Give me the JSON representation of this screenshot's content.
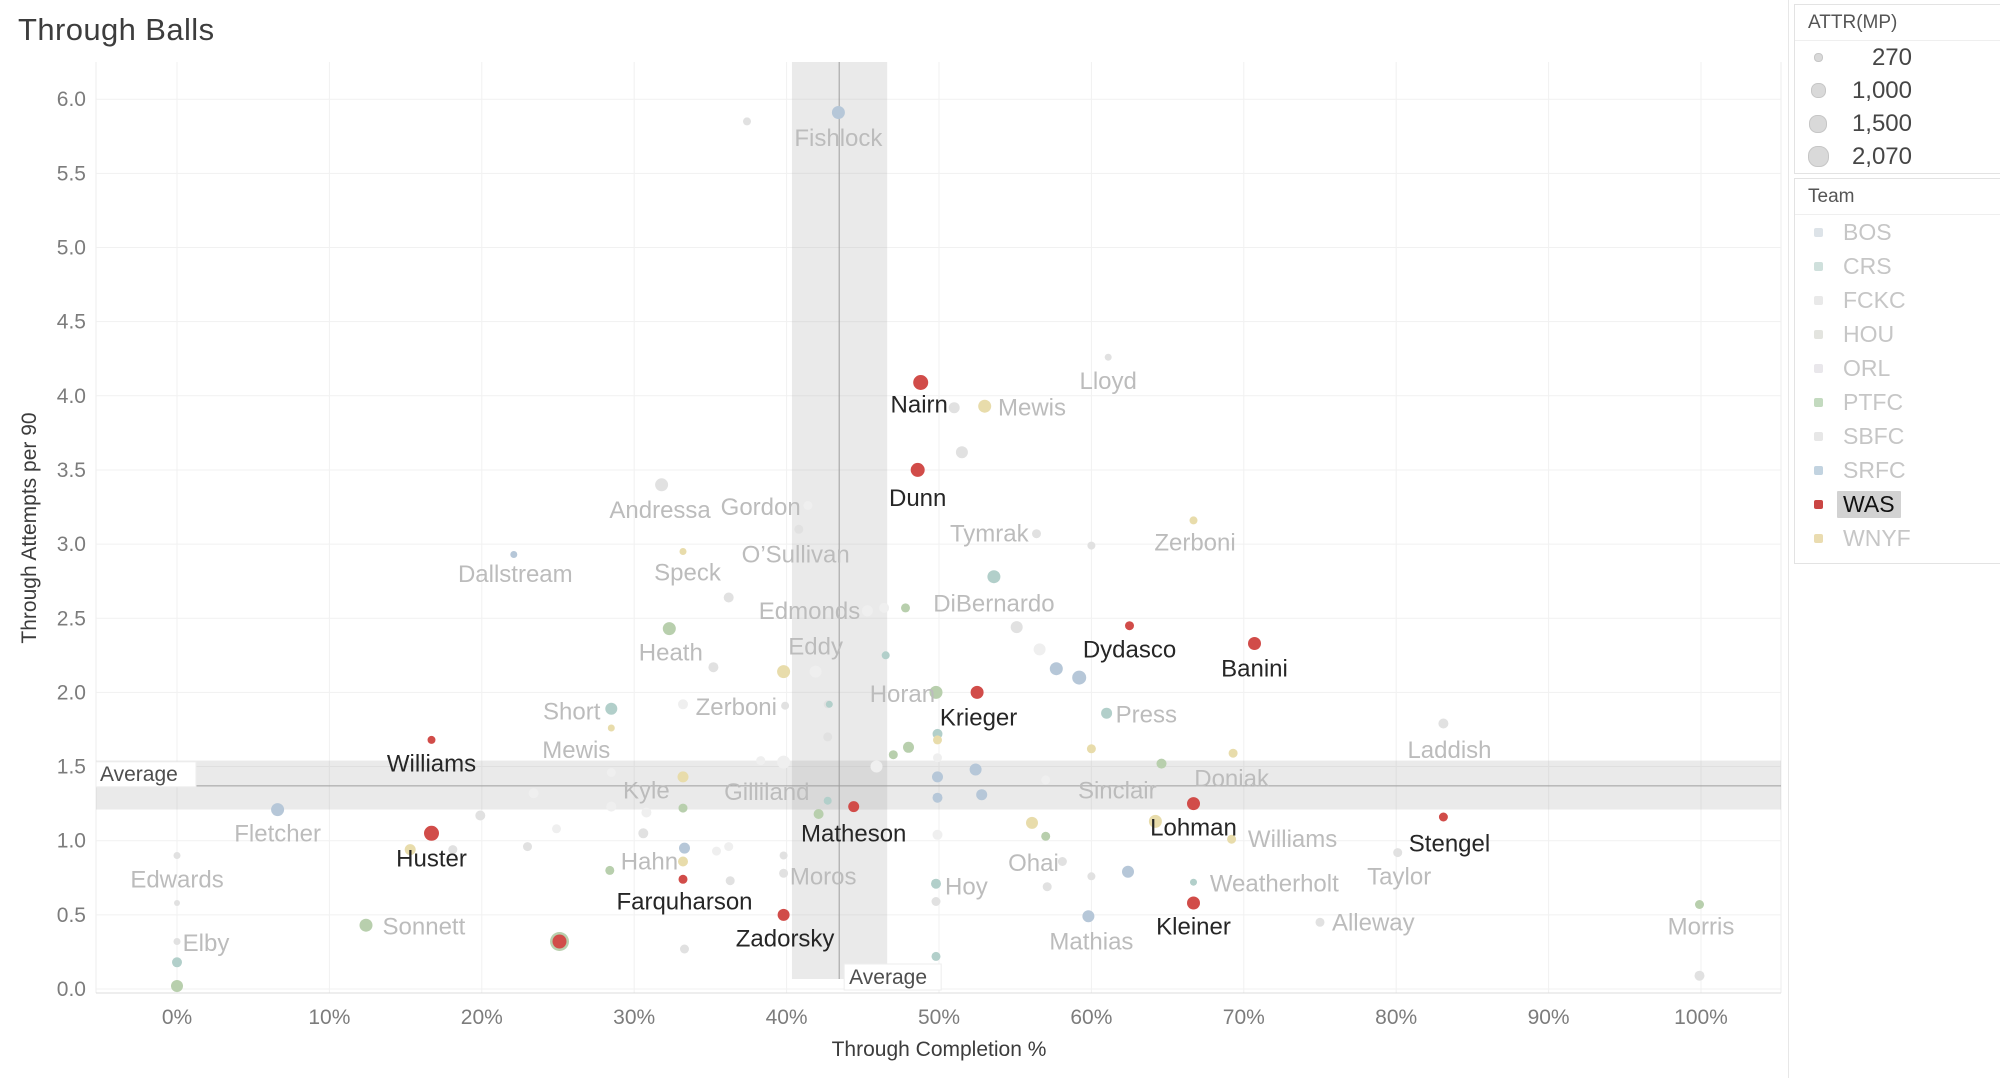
{
  "title": "Through Balls",
  "chart_data": {
    "type": "scatter",
    "title": "Through Balls",
    "xlabel": "Through Completion %",
    "ylabel": "Through Attempts per 90",
    "grid": true,
    "x_range_pct": [
      -5.3,
      105.3
    ],
    "y_range": [
      -0.03,
      6.25
    ],
    "x_ticks": [
      {
        "v": 0,
        "label": "0%"
      },
      {
        "v": 10,
        "label": "10%"
      },
      {
        "v": 20,
        "label": "20%"
      },
      {
        "v": 30,
        "label": "30%"
      },
      {
        "v": 40,
        "label": "40%"
      },
      {
        "v": 50,
        "label": "50%"
      },
      {
        "v": 60,
        "label": "60%"
      },
      {
        "v": 70,
        "label": "70%"
      },
      {
        "v": 80,
        "label": "80%"
      },
      {
        "v": 90,
        "label": "90%"
      },
      {
        "v": 100,
        "label": "100%"
      }
    ],
    "y_ticks": [
      {
        "v": 0,
        "label": "0.0"
      },
      {
        "v": 0.5,
        "label": "0.5"
      },
      {
        "v": 1,
        "label": "1.0"
      },
      {
        "v": 1.5,
        "label": "1.5"
      },
      {
        "v": 2,
        "label": "2.0"
      },
      {
        "v": 2.5,
        "label": "2.5"
      },
      {
        "v": 3,
        "label": "3.0"
      },
      {
        "v": 3.5,
        "label": "3.5"
      },
      {
        "v": 4,
        "label": "4.0"
      },
      {
        "v": 4.5,
        "label": "4.5"
      },
      {
        "v": 5,
        "label": "5.0"
      },
      {
        "v": 5.5,
        "label": "5.5"
      },
      {
        "v": 6,
        "label": "6.0"
      }
    ],
    "averages": {
      "label": "Average",
      "x_pct": 43.45,
      "x_band_pct": [
        40.35,
        46.6
      ],
      "y_val": 1.37,
      "y_band": [
        1.21,
        1.54
      ]
    },
    "size_encoding": "ATTR(MP)",
    "colors": {
      "red": "#d14c49",
      "yellow": "#e8dcab",
      "green": "#b8cfad",
      "teal": "#b2cfca",
      "blue": "#b6c7d8",
      "gray": "#e1e1e1",
      "white": "#efefef"
    },
    "points": [
      [
        37.4,
        5.85,
        "gray",
        8
      ],
      [
        51.0,
        3.92,
        "gray",
        11
      ],
      [
        51.5,
        3.62,
        "gray",
        12
      ],
      [
        61.1,
        4.26,
        "gray",
        7
      ],
      [
        31.8,
        3.4,
        "gray",
        13
      ],
      [
        41.4,
        3.26,
        "white",
        9
      ],
      [
        40.8,
        3.1,
        "gray",
        9
      ],
      [
        56.4,
        3.07,
        "gray",
        9
      ],
      [
        60.0,
        2.99,
        "gray",
        8
      ],
      [
        55.1,
        2.44,
        "gray",
        12
      ],
      [
        56.6,
        2.29,
        "white",
        12
      ],
      [
        45.3,
        2.55,
        "white",
        11
      ],
      [
        46.4,
        2.57,
        "white",
        10
      ],
      [
        36.2,
        2.64,
        "gray",
        10
      ],
      [
        35.2,
        2.17,
        "gray",
        10
      ],
      [
        41.9,
        2.14,
        "white",
        12
      ],
      [
        45.9,
        1.5,
        "white",
        12
      ],
      [
        57.0,
        1.41,
        "white",
        9
      ],
      [
        42.7,
        1.7,
        "gray",
        9
      ],
      [
        42.7,
        1.92,
        "gray",
        8
      ],
      [
        33.2,
        1.92,
        "white",
        10
      ],
      [
        39.9,
        1.91,
        "gray",
        8
      ],
      [
        49.9,
        1.56,
        "white",
        9
      ],
      [
        23.4,
        1.32,
        "white",
        10
      ],
      [
        28.5,
        1.46,
        "white",
        9
      ],
      [
        28.5,
        1.23,
        "white",
        10
      ],
      [
        30.8,
        1.19,
        "white",
        10
      ],
      [
        38.3,
        1.54,
        "white",
        9
      ],
      [
        39.8,
        1.53,
        "white",
        13
      ],
      [
        19.9,
        1.17,
        "gray",
        10
      ],
      [
        24.9,
        1.08,
        "white",
        9
      ],
      [
        23.0,
        0.96,
        "gray",
        9
      ],
      [
        30.6,
        1.05,
        "gray",
        10
      ],
      [
        35.4,
        0.93,
        "white",
        9
      ],
      [
        36.2,
        0.96,
        "white",
        9
      ],
      [
        18.1,
        0.94,
        "gray",
        9
      ],
      [
        0.0,
        0.9,
        "gray",
        7
      ],
      [
        0.0,
        0.58,
        "gray",
        6
      ],
      [
        0.0,
        0.32,
        "gray",
        7
      ],
      [
        36.3,
        0.73,
        "gray",
        9
      ],
      [
        39.8,
        0.78,
        "gray",
        9
      ],
      [
        39.8,
        0.9,
        "gray",
        8
      ],
      [
        33.3,
        0.27,
        "gray",
        9
      ],
      [
        49.8,
        0.59,
        "gray",
        9
      ],
      [
        57.1,
        0.69,
        "gray",
        9
      ],
      [
        60.0,
        0.76,
        "gray",
        8
      ],
      [
        80.1,
        0.92,
        "gray",
        9
      ],
      [
        83.1,
        1.79,
        "gray",
        10
      ],
      [
        75.0,
        0.45,
        "gray",
        9
      ],
      [
        99.9,
        0.09,
        "gray",
        10
      ],
      [
        49.9,
        1.04,
        "white",
        10
      ],
      [
        58.1,
        0.86,
        "gray",
        9
      ],
      [
        53.6,
        2.78,
        "teal",
        13
      ],
      [
        46.5,
        2.25,
        "teal",
        8
      ],
      [
        28.5,
        1.89,
        "teal",
        12
      ],
      [
        42.8,
        1.92,
        "teal",
        7
      ],
      [
        42.7,
        1.27,
        "teal",
        8
      ],
      [
        49.9,
        1.72,
        "teal",
        10
      ],
      [
        49.8,
        0.71,
        "teal",
        10
      ],
      [
        49.8,
        0.22,
        "teal",
        9
      ],
      [
        0.0,
        0.18,
        "teal",
        10
      ],
      [
        61.0,
        1.86,
        "teal",
        11
      ],
      [
        66.7,
        0.72,
        "teal",
        7
      ],
      [
        25.1,
        0.32,
        "green",
        19
      ],
      [
        32.3,
        2.43,
        "green",
        13
      ],
      [
        47.8,
        2.57,
        "green",
        9
      ],
      [
        49.8,
        2.0,
        "green",
        13
      ],
      [
        48.0,
        1.63,
        "green",
        11
      ],
      [
        47.0,
        1.58,
        "green",
        9
      ],
      [
        64.6,
        1.52,
        "green",
        10
      ],
      [
        42.1,
        1.18,
        "green",
        10
      ],
      [
        33.2,
        1.22,
        "green",
        9
      ],
      [
        28.4,
        0.8,
        "green",
        9
      ],
      [
        12.4,
        0.43,
        "green",
        13
      ],
      [
        0.0,
        0.02,
        "green",
        12
      ],
      [
        99.9,
        0.57,
        "green",
        9
      ],
      [
        57.0,
        1.03,
        "green",
        9
      ],
      [
        53.0,
        3.93,
        "yellow",
        13
      ],
      [
        33.2,
        2.95,
        "yellow",
        7
      ],
      [
        66.7,
        3.16,
        "yellow",
        8
      ],
      [
        39.8,
        2.14,
        "yellow",
        13
      ],
      [
        28.5,
        1.76,
        "yellow",
        7
      ],
      [
        49.9,
        1.68,
        "yellow",
        9
      ],
      [
        60.0,
        1.62,
        "yellow",
        9
      ],
      [
        69.3,
        1.59,
        "yellow",
        9
      ],
      [
        33.2,
        1.43,
        "yellow",
        11
      ],
      [
        64.2,
        1.13,
        "yellow",
        13
      ],
      [
        69.2,
        1.01,
        "yellow",
        9
      ],
      [
        15.3,
        0.94,
        "yellow",
        11
      ],
      [
        33.2,
        0.86,
        "yellow",
        10
      ],
      [
        56.1,
        1.12,
        "yellow",
        12
      ],
      [
        43.4,
        5.91,
        "blue",
        13
      ],
      [
        22.1,
        2.93,
        "blue",
        7
      ],
      [
        6.6,
        1.21,
        "blue",
        13
      ],
      [
        52.4,
        1.48,
        "blue",
        12
      ],
      [
        52.8,
        1.31,
        "blue",
        11
      ],
      [
        49.9,
        1.43,
        "blue",
        11
      ],
      [
        49.9,
        1.29,
        "blue",
        10
      ],
      [
        57.7,
        2.16,
        "blue",
        13
      ],
      [
        59.2,
        2.1,
        "blue",
        14
      ],
      [
        33.3,
        0.95,
        "blue",
        11
      ],
      [
        62.4,
        0.79,
        "blue",
        12
      ],
      [
        59.8,
        0.49,
        "blue",
        12
      ],
      [
        48.8,
        4.09,
        "red",
        15
      ],
      [
        48.6,
        3.5,
        "red",
        14
      ],
      [
        62.5,
        2.45,
        "red",
        9
      ],
      [
        70.7,
        2.33,
        "red",
        13
      ],
      [
        52.5,
        2.0,
        "red",
        13
      ],
      [
        16.7,
        1.68,
        "red",
        8
      ],
      [
        16.7,
        1.05,
        "red",
        15
      ],
      [
        44.4,
        1.23,
        "red",
        11
      ],
      [
        66.7,
        1.25,
        "red",
        13
      ],
      [
        83.1,
        1.16,
        "red",
        9
      ],
      [
        33.2,
        0.74,
        "red",
        9
      ],
      [
        39.8,
        0.5,
        "red",
        12
      ],
      [
        66.7,
        0.58,
        "red",
        13
      ],
      [
        25.1,
        0.32,
        "red",
        14
      ]
    ],
    "labels": [
      [
        "Nairn",
        48.7,
        3.94,
        1
      ],
      [
        "Dunn",
        48.6,
        3.31,
        1
      ],
      [
        "Dydasco",
        62.5,
        2.29,
        1
      ],
      [
        "Banini",
        70.7,
        2.16,
        1
      ],
      [
        "Krieger",
        52.6,
        1.83,
        1
      ],
      [
        "Williams",
        16.7,
        1.52,
        1
      ],
      [
        "Huster",
        16.7,
        0.88,
        1
      ],
      [
        "Matheson",
        44.4,
        1.05,
        1
      ],
      [
        "Lohman",
        66.7,
        1.09,
        1
      ],
      [
        "Stengel",
        83.5,
        0.98,
        1
      ],
      [
        "Farquharson",
        33.3,
        0.59,
        1
      ],
      [
        "Zadorsky",
        39.9,
        0.34,
        1
      ],
      [
        "Kleiner",
        66.7,
        0.42,
        1
      ],
      [
        "Fishlock",
        43.4,
        5.74,
        0
      ],
      [
        "Lloyd",
        61.1,
        4.1,
        0
      ],
      [
        "Mewis",
        56.1,
        3.92,
        0
      ],
      [
        "Andressa",
        31.7,
        3.23,
        0
      ],
      [
        "Gordon",
        38.3,
        3.25,
        0
      ],
      [
        "O’Sullivan",
        40.6,
        2.93,
        0
      ],
      [
        "Dallstream",
        22.2,
        2.8,
        0
      ],
      [
        "Speck",
        33.5,
        2.81,
        0
      ],
      [
        "Tymrak",
        53.3,
        3.07,
        0
      ],
      [
        "Zerboni",
        66.8,
        3.01,
        0
      ],
      [
        "DiBernardo",
        53.6,
        2.6,
        0
      ],
      [
        "Edmonds",
        41.5,
        2.55,
        0
      ],
      [
        "Heath",
        32.4,
        2.27,
        0
      ],
      [
        "Eddy",
        41.9,
        2.31,
        0
      ],
      [
        "Horan",
        47.6,
        1.99,
        0
      ],
      [
        "Short",
        25.9,
        1.87,
        0
      ],
      [
        "Zerboni",
        36.7,
        1.9,
        0
      ],
      [
        "Press",
        63.6,
        1.85,
        0
      ],
      [
        "Mewis",
        26.2,
        1.61,
        0
      ],
      [
        "Laddish",
        83.5,
        1.61,
        0
      ],
      [
        "Kyle",
        30.8,
        1.34,
        0
      ],
      [
        "Gilliland",
        38.7,
        1.33,
        0
      ],
      [
        "Sinclair",
        61.7,
        1.34,
        0
      ],
      [
        "Doniak",
        69.2,
        1.42,
        0
      ],
      [
        "Fletcher",
        6.6,
        1.05,
        0
      ],
      [
        "Williams",
        73.2,
        1.01,
        0
      ],
      [
        "Ohai",
        56.2,
        0.85,
        0
      ],
      [
        "Hahn",
        31.0,
        0.86,
        0
      ],
      [
        "Moros",
        42.4,
        0.76,
        0
      ],
      [
        "Hoy",
        51.8,
        0.69,
        0
      ],
      [
        "Weatherholt",
        72.0,
        0.71,
        0
      ],
      [
        "Taylor",
        80.2,
        0.76,
        0
      ],
      [
        "Edwards",
        0.0,
        0.74,
        0
      ],
      [
        "Sonnett",
        16.2,
        0.42,
        0
      ],
      [
        "Elby",
        1.9,
        0.31,
        0
      ],
      [
        "Mathias",
        60.0,
        0.32,
        0
      ],
      [
        "Alleway",
        78.5,
        0.45,
        0
      ],
      [
        "Morris",
        100.0,
        0.42,
        0
      ]
    ]
  },
  "legend_size": {
    "title": "ATTR(MP)",
    "items": [
      {
        "label": "270",
        "d": 7
      },
      {
        "label": "1,000",
        "d": 13
      },
      {
        "label": "1,500",
        "d": 16
      },
      {
        "label": "2,070",
        "d": 19
      }
    ]
  },
  "legend_team": {
    "title": "Team",
    "selected": "WAS",
    "items": [
      {
        "label": "BOS",
        "color": "#dde3e8"
      },
      {
        "label": "CRS",
        "color": "#cfe0dc"
      },
      {
        "label": "FCKC",
        "color": "#e9e9e9"
      },
      {
        "label": "HOU",
        "color": "#e3e4df"
      },
      {
        "label": "ORL",
        "color": "#e9e7eb"
      },
      {
        "label": "PTFC",
        "color": "#c3dabf"
      },
      {
        "label": "SBFC",
        "color": "#e7e7e7"
      },
      {
        "label": "SRFC",
        "color": "#c2d3e0"
      },
      {
        "label": "WAS",
        "color": "#ca4543"
      },
      {
        "label": "WNYF",
        "color": "#eadcb0"
      }
    ]
  }
}
